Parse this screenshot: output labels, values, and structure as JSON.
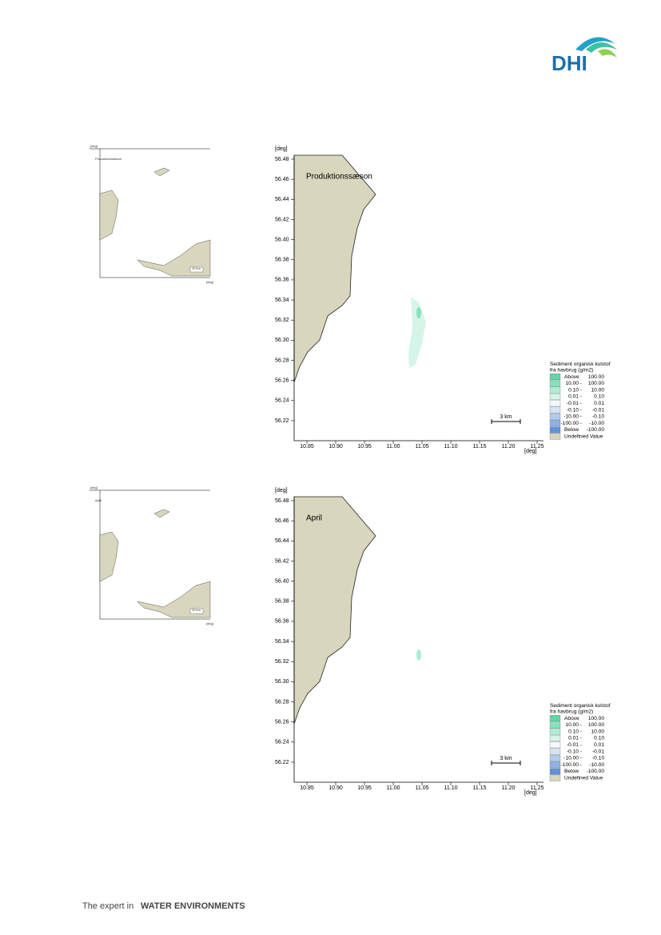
{
  "header": {
    "logo": "DHI"
  },
  "figures": [
    {
      "overview": {
        "title": "Produktionssæson",
        "unit": "[deg]",
        "scale": "10 km"
      },
      "map": {
        "title": "Produktionssæson",
        "y_unit": "[deg]",
        "x_unit": "[deg]",
        "yticks": [
          "56.48",
          "56.46",
          "56.44",
          "56.42",
          "56.40",
          "56.38",
          "56.36",
          "56.34",
          "56.32",
          "56.30",
          "56.28",
          "56.26",
          "56.24",
          "56.22"
        ],
        "xticks": [
          "10.85",
          "10.90",
          "10.95",
          "11.00",
          "11.05",
          "11.10",
          "11.15",
          "11.20",
          "11.25"
        ],
        "scale": "3 km",
        "legend": {
          "title": [
            "Sediment organisk kulstof",
            "fra havbrug (g/m2)"
          ],
          "rows": [
            [
              "Above",
              "100.00"
            ],
            [
              "10.00 -",
              "100.00"
            ],
            [
              "0.10 -",
              "10.00"
            ],
            [
              "0.01 -",
              "0.10"
            ],
            [
              "-0.01 -",
              "0.01"
            ],
            [
              "-0.10 -",
              "-0.01"
            ],
            [
              "-10.00 -",
              "-0.10"
            ],
            [
              "-100.00 -",
              "-10.00"
            ],
            [
              "Below",
              "-100.00"
            ]
          ],
          "undefined": "Undefined Value"
        }
      }
    },
    {
      "overview": {
        "title": "April",
        "unit": "[deg]",
        "scale": "10 km"
      },
      "map": {
        "title": "April",
        "y_unit": "[deg]",
        "x_unit": "[deg]",
        "yticks": [
          "56.48",
          "56.46",
          "56.44",
          "56.42",
          "56.40",
          "56.38",
          "56.36",
          "56.34",
          "56.32",
          "56.30",
          "56.28",
          "56.26",
          "56.24",
          "56.22"
        ],
        "xticks": [
          "10.85",
          "10.90",
          "10.95",
          "11.00",
          "11.05",
          "11.10",
          "11.15",
          "11.20",
          "11.25"
        ],
        "scale": "3 km",
        "legend": {
          "title": [
            "Sediment organisk kulstof",
            "fra havbrug (g/m2)"
          ],
          "rows": [
            [
              "Above",
              "100.00"
            ],
            [
              "10.00 -",
              "100.00"
            ],
            [
              "0.10 -",
              "10.00"
            ],
            [
              "0.01 -",
              "0.10"
            ],
            [
              "-0.01 -",
              "0.01"
            ],
            [
              "-0.10 -",
              "-0.01"
            ],
            [
              "-10.00 -",
              "-0.10"
            ],
            [
              "-100.00 -",
              "-10.00"
            ],
            [
              "Below",
              "-100.00"
            ]
          ],
          "undefined": "Undefined Value"
        }
      }
    }
  ],
  "footer": {
    "lead": "The expert in",
    "emphasis": "WATER ENVIRONMENTS"
  }
}
